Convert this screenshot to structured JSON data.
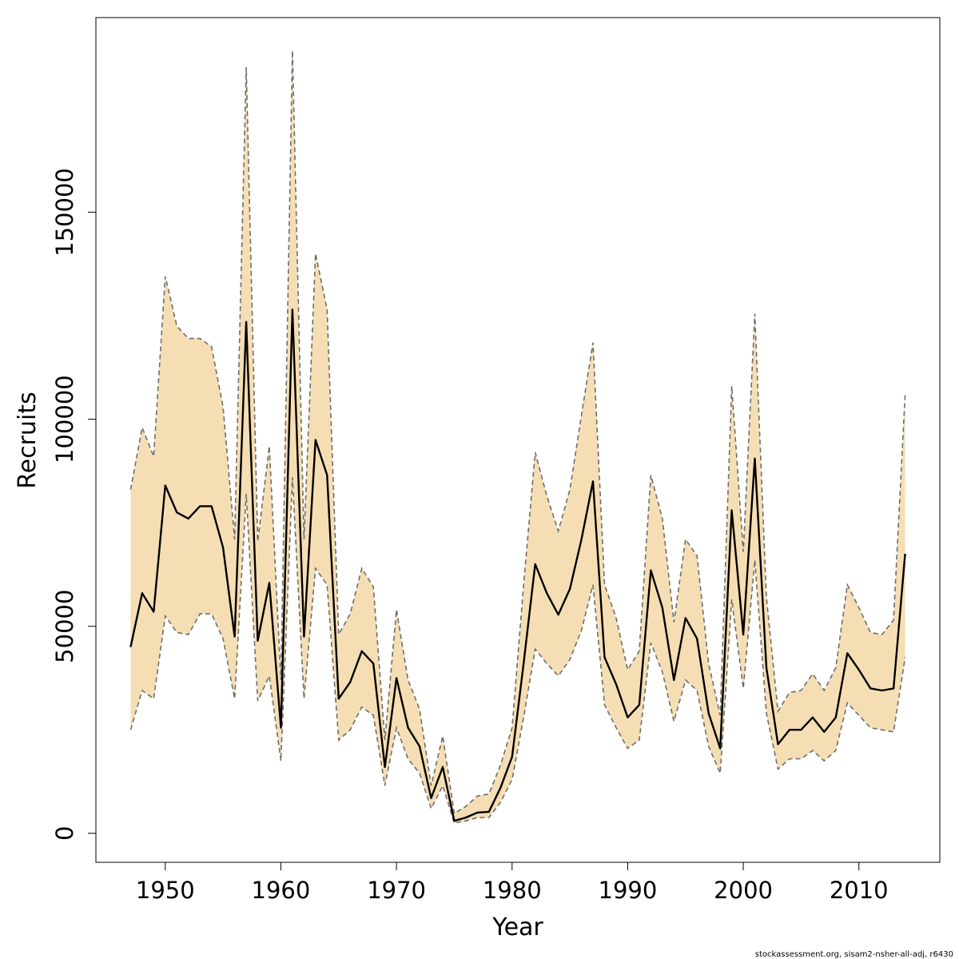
{
  "chart_data": {
    "type": "line",
    "title": "",
    "xlabel": "Year",
    "ylabel": "Recruits",
    "xlim": [
      1944,
      2017
    ],
    "ylim": [
      -7000,
      197000
    ],
    "x_ticks": [
      1950,
      1960,
      1970,
      1980,
      1990,
      2000,
      2010
    ],
    "y_ticks": [
      0,
      50000,
      100000,
      150000
    ],
    "grid": false,
    "legend": "none",
    "colors": {
      "band_fill": "#f5deb3",
      "bound_line": "#6e6e6e",
      "estimate_line": "#000000"
    },
    "x": [
      1947,
      1948,
      1949,
      1950,
      1951,
      1952,
      1953,
      1954,
      1955,
      1956,
      1957,
      1958,
      1959,
      1960,
      1961,
      1962,
      1963,
      1964,
      1965,
      1966,
      1967,
      1968,
      1969,
      1970,
      1971,
      1972,
      1973,
      1974,
      1975,
      1976,
      1977,
      1978,
      1979,
      1980,
      1981,
      1982,
      1983,
      1984,
      1985,
      1986,
      1987,
      1988,
      1989,
      1990,
      1991,
      1992,
      1993,
      1994,
      1995,
      1996,
      1997,
      1998,
      1999,
      2000,
      2001,
      2002,
      2003,
      2004,
      2005,
      2006,
      2007,
      2008,
      2009,
      2010,
      2011,
      2012,
      2013,
      2014
    ],
    "series": [
      {
        "values": [
          45000,
          58000,
          53500,
          84000,
          77500,
          76000,
          79000,
          79000,
          69000,
          47500,
          123500,
          46500,
          60500,
          25500,
          126500,
          47500,
          95000,
          86500,
          32500,
          36500,
          44000,
          41000,
          16000,
          37500,
          25500,
          21000,
          8500,
          16000,
          3000,
          3800,
          5000,
          5200,
          11000,
          18500,
          41000,
          65000,
          58000,
          52800,
          59000,
          71000,
          85000,
          42500,
          36000,
          28000,
          31000,
          63500,
          54500,
          37000,
          52000,
          47000,
          29000,
          20500,
          78000,
          48000,
          90500,
          40000,
          21500,
          25000,
          25000,
          28000,
          24500,
          28000,
          43500,
          39500,
          35000,
          34500,
          35000,
          67500
        ]
      },
      {
        "values": [
          25000,
          34500,
          32500,
          52500,
          48500,
          48000,
          53000,
          53000,
          47000,
          32500,
          82000,
          32000,
          38000,
          17500,
          86000,
          32500,
          64000,
          60000,
          22500,
          25000,
          30500,
          28500,
          11500,
          25500,
          18000,
          14500,
          6000,
          11500,
          2500,
          3000,
          3800,
          3800,
          7500,
          13000,
          28000,
          44500,
          41000,
          38000,
          42000,
          49000,
          60000,
          31000,
          25500,
          20500,
          22500,
          46000,
          39000,
          27000,
          37000,
          34500,
          21000,
          14500,
          56500,
          35000,
          66000,
          29000,
          15500,
          18000,
          18000,
          20000,
          17500,
          20000,
          31500,
          28500,
          25500,
          25000,
          24500,
          42500
        ]
      },
      {
        "values": [
          83000,
          98000,
          91000,
          134500,
          122500,
          119500,
          119500,
          117500,
          103000,
          71000,
          185000,
          70500,
          93500,
          37000,
          189000,
          71000,
          140000,
          126500,
          48000,
          53000,
          64000,
          59500,
          22500,
          54000,
          37000,
          30000,
          11500,
          23500,
          4800,
          6500,
          9000,
          9500,
          16500,
          25500,
          60000,
          92000,
          81500,
          73000,
          83000,
          101000,
          118500,
          60000,
          52000,
          39500,
          44000,
          86500,
          76000,
          51000,
          71000,
          67000,
          41000,
          28500,
          108000,
          68000,
          125500,
          57000,
          29500,
          34000,
          34500,
          38500,
          34500,
          40000,
          60000,
          54500,
          48500,
          48000,
          51500,
          106000
        ]
      }
    ]
  },
  "footer": {
    "source_note": "stockassessment.org, sisam2-nsher-all-adj, r6430"
  }
}
